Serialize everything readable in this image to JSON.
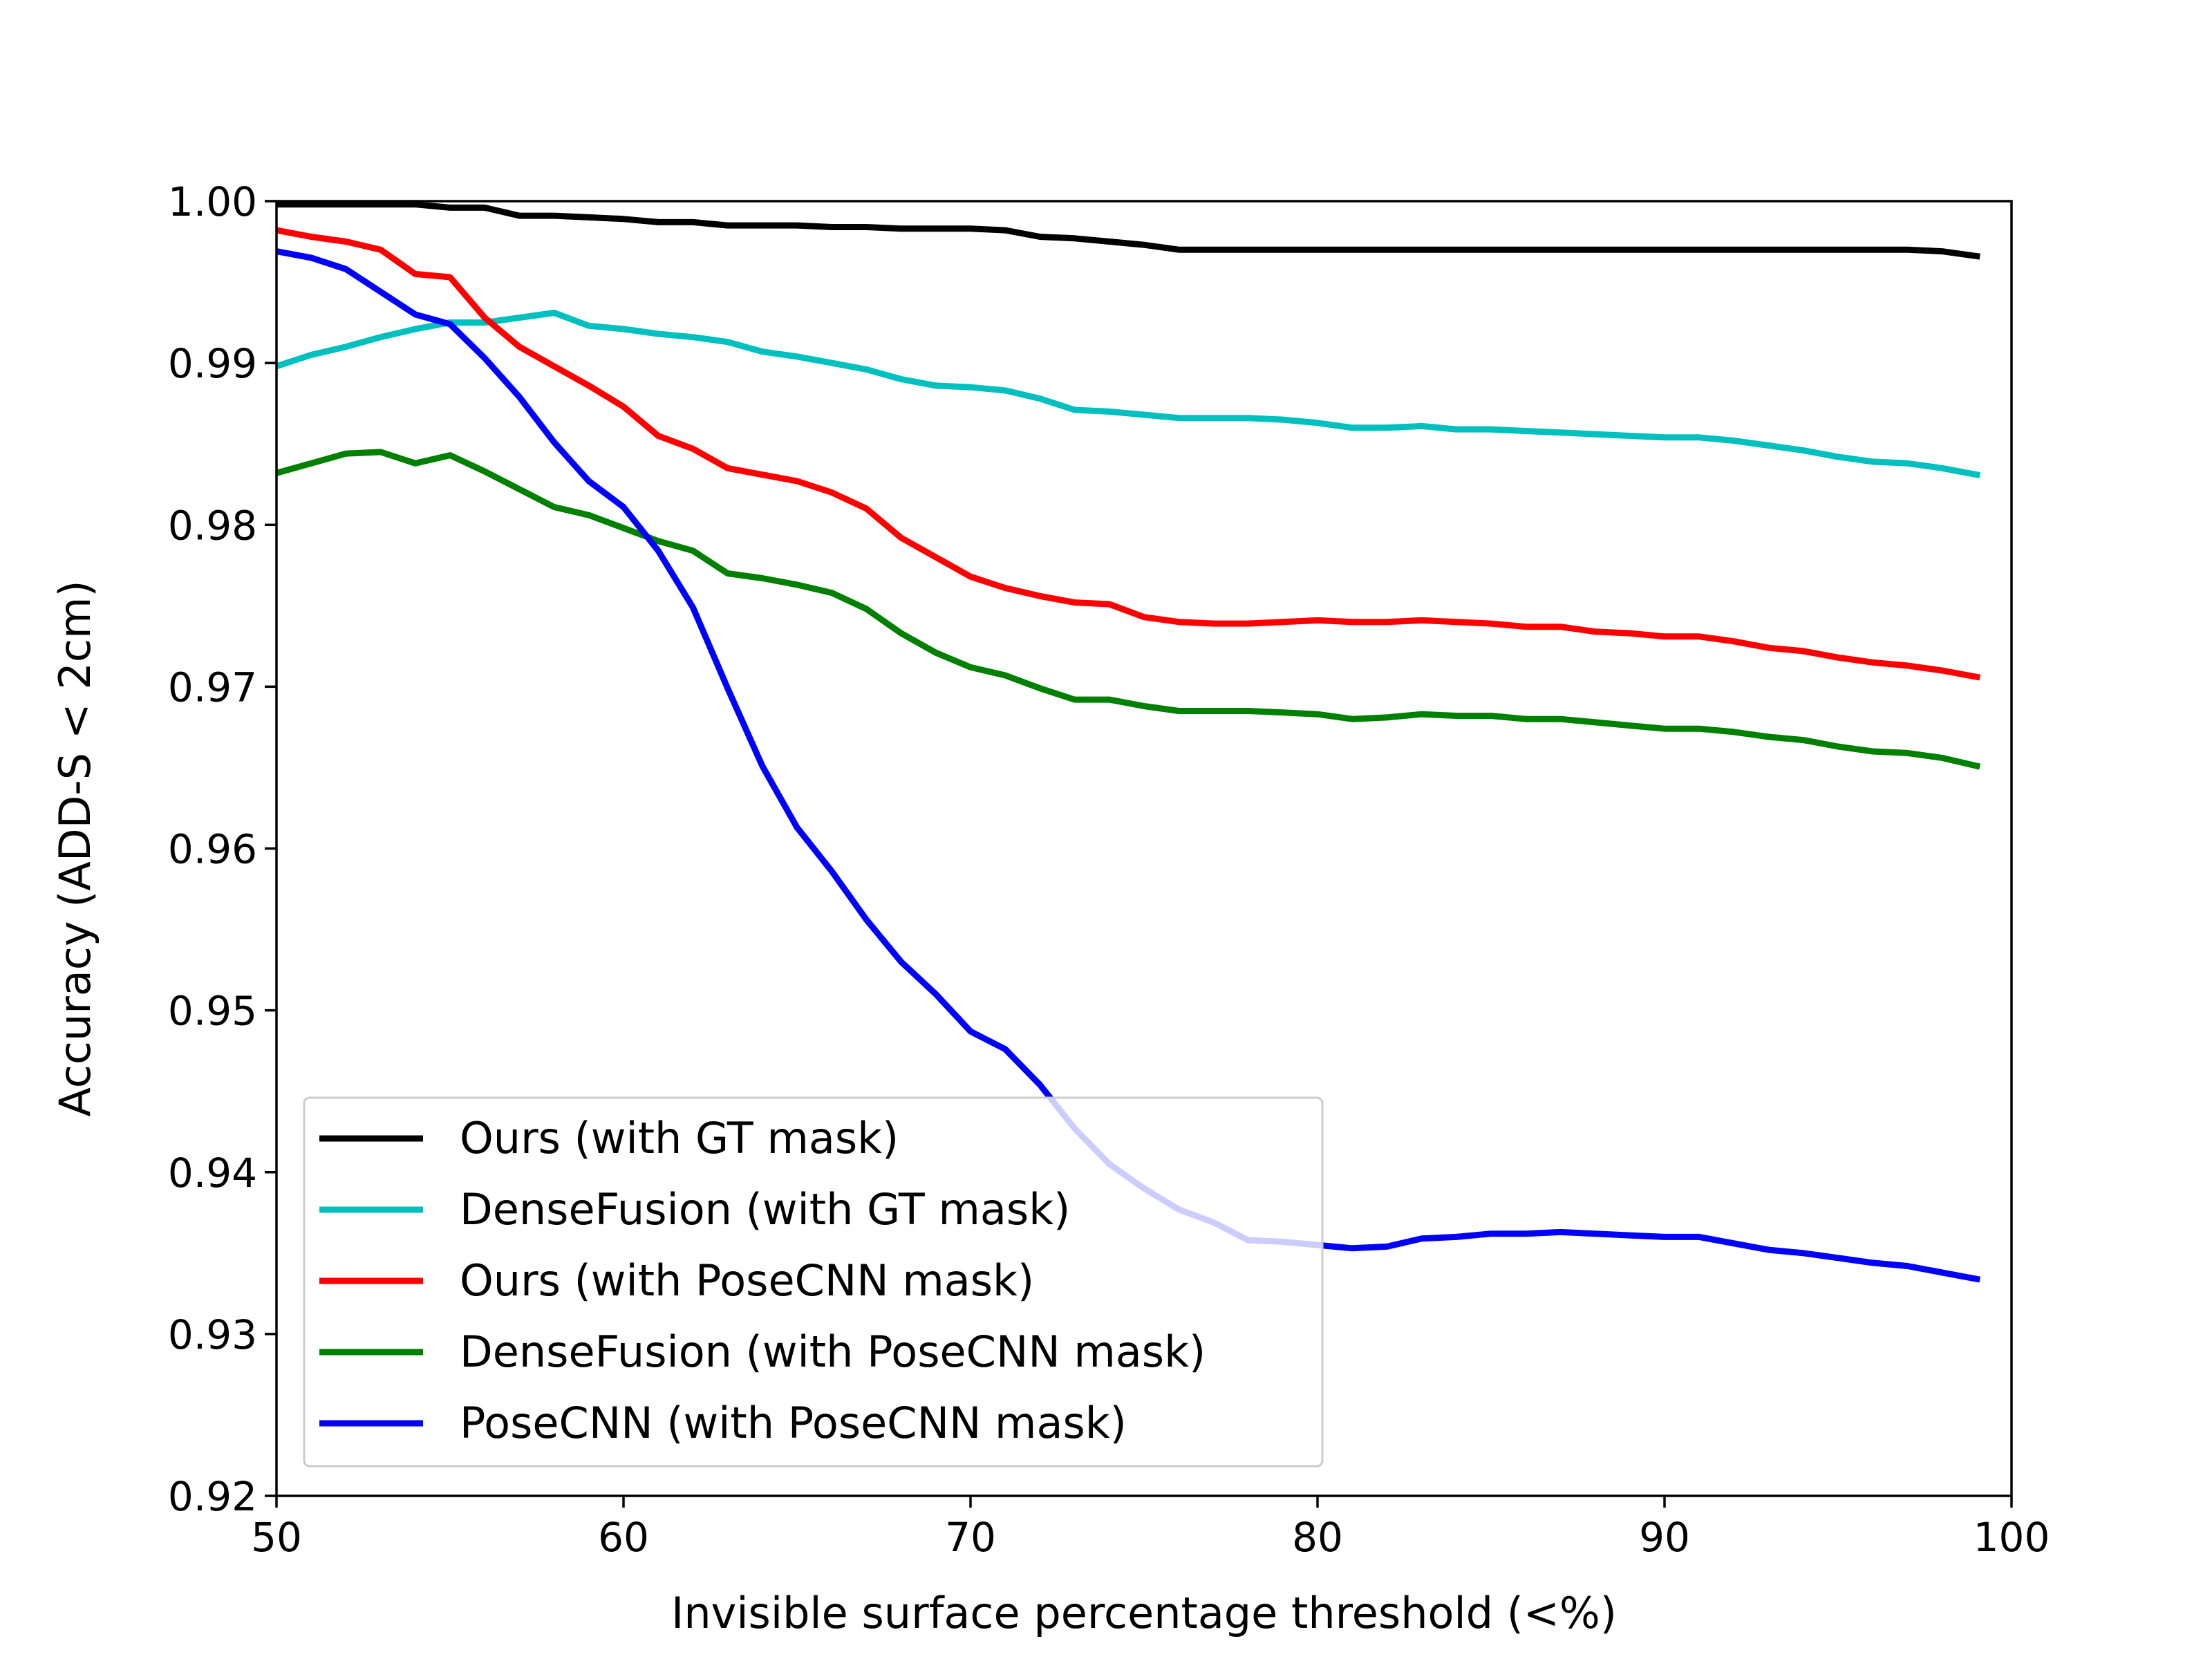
{
  "chart_data": {
    "type": "line",
    "title": "",
    "xlabel": "Invisible surface percentage threshold (<%)",
    "ylabel": "Accuracy (ADD-S < 2cm)",
    "xlim": [
      50,
      100
    ],
    "ylim": [
      0.92,
      1.0
    ],
    "xticks": [
      50,
      60,
      70,
      80,
      90,
      100
    ],
    "xtick_labels": [
      "50",
      "60",
      "70",
      "80",
      "90",
      "100"
    ],
    "yticks": [
      0.92,
      0.93,
      0.94,
      0.95,
      0.96,
      0.97,
      0.98,
      0.99,
      1.0
    ],
    "ytick_labels": [
      "0.92",
      "0.93",
      "0.94",
      "0.95",
      "0.96",
      "0.97",
      "0.98",
      "0.99",
      "1.00"
    ],
    "grid": false,
    "legend_position": "lower-left",
    "series": [
      {
        "name": "Ours (with GT mask)",
        "color": "#000000",
        "x": [
          50,
          51,
          52,
          53,
          54,
          55,
          56,
          57,
          58,
          59,
          60,
          61,
          62,
          63,
          64,
          65,
          66,
          67,
          68,
          69,
          70,
          71,
          72,
          73,
          74,
          75,
          76,
          77,
          78,
          79,
          80,
          81,
          82,
          83,
          84,
          85,
          86,
          87,
          88,
          89,
          90,
          91,
          92,
          93,
          94,
          95,
          96,
          97,
          98,
          99
        ],
        "y": [
          0.9998,
          0.9998,
          0.9998,
          0.9998,
          0.9998,
          0.9996,
          0.9996,
          0.9991,
          0.9991,
          0.999,
          0.9989,
          0.9987,
          0.9987,
          0.9985,
          0.9985,
          0.9985,
          0.9984,
          0.9984,
          0.9983,
          0.9983,
          0.9983,
          0.9982,
          0.9978,
          0.9977,
          0.9975,
          0.9973,
          0.997,
          0.997,
          0.997,
          0.997,
          0.997,
          0.997,
          0.997,
          0.997,
          0.997,
          0.997,
          0.997,
          0.997,
          0.997,
          0.997,
          0.997,
          0.997,
          0.997,
          0.997,
          0.997,
          0.997,
          0.997,
          0.997,
          0.9969,
          0.9966
        ]
      },
      {
        "name": "DenseFusion (with GT mask)",
        "color": "#00bfbf",
        "x": [
          50,
          51,
          52,
          53,
          54,
          55,
          56,
          57,
          58,
          59,
          60,
          61,
          62,
          63,
          64,
          65,
          66,
          67,
          68,
          69,
          70,
          71,
          72,
          73,
          74,
          75,
          76,
          77,
          78,
          79,
          80,
          81,
          82,
          83,
          84,
          85,
          86,
          87,
          88,
          89,
          90,
          91,
          92,
          93,
          94,
          95,
          96,
          97,
          98,
          99
        ],
        "y": [
          0.9898,
          0.9905,
          0.991,
          0.9916,
          0.9921,
          0.9925,
          0.9925,
          0.9928,
          0.9931,
          0.9923,
          0.9921,
          0.9918,
          0.9916,
          0.9913,
          0.9907,
          0.9904,
          0.99,
          0.9896,
          0.989,
          0.9886,
          0.9885,
          0.9883,
          0.9878,
          0.9871,
          0.987,
          0.9868,
          0.9866,
          0.9866,
          0.9866,
          0.9865,
          0.9863,
          0.986,
          0.986,
          0.9861,
          0.9859,
          0.9859,
          0.9858,
          0.9857,
          0.9856,
          0.9855,
          0.9854,
          0.9854,
          0.9852,
          0.9849,
          0.9846,
          0.9842,
          0.9839,
          0.9838,
          0.9835,
          0.9831
        ]
      },
      {
        "name": "Ours (with PoseCNN mask)",
        "color": "#ff0000",
        "x": [
          50,
          51,
          52,
          53,
          54,
          55,
          56,
          57,
          58,
          59,
          60,
          61,
          62,
          63,
          64,
          65,
          66,
          67,
          68,
          69,
          70,
          71,
          72,
          73,
          74,
          75,
          76,
          77,
          78,
          79,
          80,
          81,
          82,
          83,
          84,
          85,
          86,
          87,
          88,
          89,
          90,
          91,
          92,
          93,
          94,
          95,
          96,
          97,
          98,
          99
        ],
        "y": [
          0.9982,
          0.9978,
          0.9975,
          0.997,
          0.9955,
          0.9953,
          0.9928,
          0.991,
          0.9898,
          0.9886,
          0.9873,
          0.9855,
          0.9847,
          0.9835,
          0.9831,
          0.9827,
          0.982,
          0.981,
          0.9792,
          0.978,
          0.9768,
          0.9761,
          0.9756,
          0.9752,
          0.9751,
          0.9743,
          0.974,
          0.9739,
          0.9739,
          0.974,
          0.9741,
          0.974,
          0.974,
          0.9741,
          0.974,
          0.9739,
          0.9737,
          0.9737,
          0.9734,
          0.9733,
          0.9731,
          0.9731,
          0.9728,
          0.9724,
          0.9722,
          0.9718,
          0.9715,
          0.9713,
          0.971,
          0.9706
        ]
      },
      {
        "name": "DenseFusion (with PoseCNN mask)",
        "color": "#008000",
        "x": [
          50,
          51,
          52,
          53,
          54,
          55,
          56,
          57,
          58,
          59,
          60,
          61,
          62,
          63,
          64,
          65,
          66,
          67,
          68,
          69,
          70,
          71,
          72,
          73,
          74,
          75,
          76,
          77,
          78,
          79,
          80,
          81,
          82,
          83,
          84,
          85,
          86,
          87,
          88,
          89,
          90,
          91,
          92,
          93,
          94,
          95,
          96,
          97,
          98,
          99
        ],
        "y": [
          0.9832,
          0.9838,
          0.9844,
          0.9845,
          0.9838,
          0.9843,
          0.9833,
          0.9822,
          0.9811,
          0.9806,
          0.9798,
          0.979,
          0.9784,
          0.977,
          0.9767,
          0.9763,
          0.9758,
          0.9748,
          0.9733,
          0.9721,
          0.9712,
          0.9707,
          0.9699,
          0.9692,
          0.9692,
          0.9688,
          0.9685,
          0.9685,
          0.9685,
          0.9684,
          0.9683,
          0.968,
          0.9681,
          0.9683,
          0.9682,
          0.9682,
          0.968,
          0.968,
          0.9678,
          0.9676,
          0.9674,
          0.9674,
          0.9672,
          0.9669,
          0.9667,
          0.9663,
          0.966,
          0.9659,
          0.9656,
          0.9651
        ]
      },
      {
        "name": "PoseCNN (with PoseCNN mask)",
        "color": "#0000ff",
        "x": [
          50,
          51,
          52,
          53,
          54,
          55,
          56,
          57,
          58,
          59,
          60,
          61,
          62,
          63,
          64,
          65,
          66,
          67,
          68,
          69,
          70,
          71,
          72,
          73,
          74,
          75,
          76,
          77,
          78,
          79,
          80,
          81,
          82,
          83,
          84,
          85,
          86,
          87,
          88,
          89,
          90,
          91,
          92,
          93,
          94,
          95,
          96,
          97,
          98,
          99
        ],
        "y": [
          0.9969,
          0.9965,
          0.9958,
          0.9944,
          0.993,
          0.9924,
          0.9903,
          0.9879,
          0.9851,
          0.9827,
          0.9811,
          0.9784,
          0.9749,
          0.9699,
          0.9651,
          0.9613,
          0.9586,
          0.9556,
          0.953,
          0.951,
          0.9487,
          0.9476,
          0.9454,
          0.9427,
          0.9405,
          0.939,
          0.9377,
          0.9369,
          0.9358,
          0.9357,
          0.9355,
          0.9353,
          0.9354,
          0.9359,
          0.936,
          0.9362,
          0.9362,
          0.9363,
          0.9362,
          0.9361,
          0.936,
          0.936,
          0.9356,
          0.9352,
          0.935,
          0.9347,
          0.9344,
          0.9342,
          0.9338,
          0.9334
        ]
      }
    ]
  }
}
